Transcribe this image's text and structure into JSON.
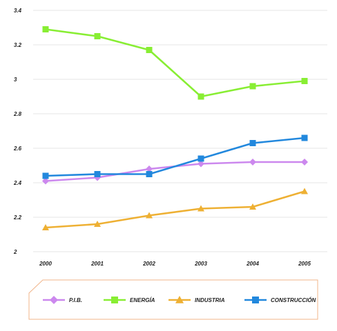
{
  "chart_data": {
    "type": "line",
    "categories": [
      "2000",
      "2001",
      "2002",
      "2003",
      "2004",
      "2005"
    ],
    "y_ticks": [
      "2",
      "2.2",
      "2.4",
      "2.6",
      "2.8",
      "3",
      "3.2",
      "3.4"
    ],
    "ylim": [
      2,
      3.4
    ],
    "grid": true,
    "legend_position": "bottom",
    "series": [
      {
        "name": "P.I.B.",
        "marker": "diamond",
        "color": "#cc88ee",
        "values": [
          2.41,
          2.43,
          2.48,
          2.51,
          2.52,
          2.52
        ]
      },
      {
        "name": "ENERGÍA",
        "marker": "square",
        "color": "#88ee33",
        "values": [
          3.29,
          3.25,
          3.17,
          2.9,
          2.96,
          2.99
        ]
      },
      {
        "name": "INDUSTRIA",
        "marker": "triangle",
        "color": "#eeb033",
        "values": [
          2.14,
          2.16,
          2.21,
          2.25,
          2.26,
          2.35
        ]
      },
      {
        "name": "CONSTRUCCIÓN",
        "marker": "square",
        "color": "#2288dd",
        "values": [
          2.44,
          2.45,
          2.45,
          2.54,
          2.63,
          2.66
        ]
      }
    ]
  },
  "colors": {
    "grid": "#e6e6e6",
    "legend_border": "#f0b48a"
  }
}
